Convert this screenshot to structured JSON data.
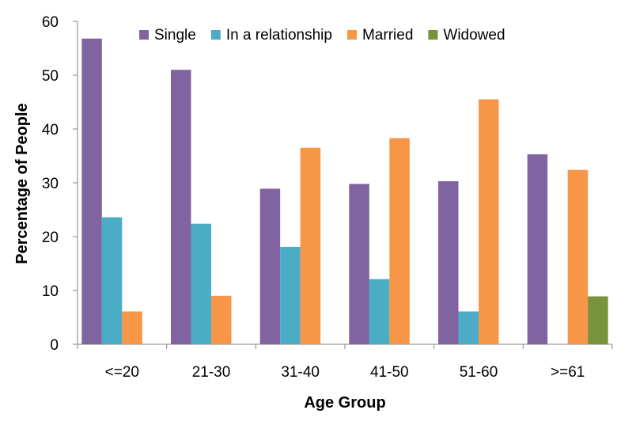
{
  "chart_data": {
    "type": "bar",
    "title": "",
    "xlabel": "Age Group",
    "ylabel": "Percentage of People",
    "ylim": [
      0,
      60
    ],
    "yticks": [
      0,
      10,
      20,
      30,
      40,
      50,
      60
    ],
    "grid": false,
    "legend_position": "top",
    "categories": [
      "<=20",
      "21-30",
      "31-40",
      "41-50",
      "51-60",
      ">=61"
    ],
    "series": [
      {
        "name": "Single",
        "color": "#8064A2",
        "values": [
          56.8,
          51.0,
          28.9,
          29.8,
          30.3,
          35.3
        ]
      },
      {
        "name": "In a relationship",
        "color": "#4BACC6",
        "values": [
          23.6,
          22.4,
          18.1,
          12.1,
          6.1,
          0
        ]
      },
      {
        "name": "Married",
        "color": "#F79646",
        "values": [
          6.1,
          9.0,
          36.5,
          38.3,
          45.5,
          32.4
        ]
      },
      {
        "name": "Widowed",
        "color": "#77933C",
        "values": [
          0,
          0,
          0,
          0,
          0,
          8.9
        ]
      }
    ]
  }
}
